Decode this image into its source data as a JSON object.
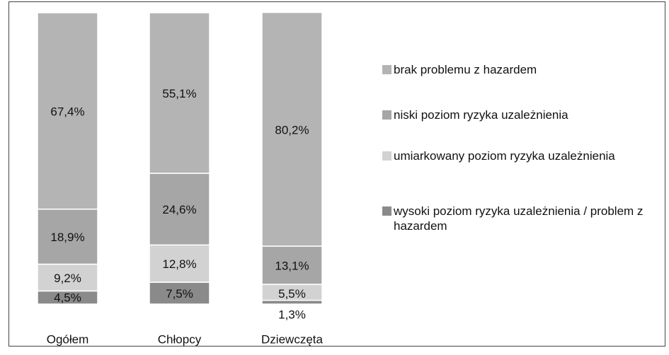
{
  "chart_data": {
    "type": "stacked_bar",
    "categories": [
      "Ogółem",
      "Chłopcy",
      "Dziewczęta"
    ],
    "ylim": [
      0,
      100
    ],
    "series": [
      {
        "name": "brak problemu z hazardem",
        "color": "#b4b4b4",
        "values": [
          67.4,
          55.1,
          80.2
        ],
        "value_labels": [
          "67,4%",
          "55,1%",
          "80,2%"
        ]
      },
      {
        "name": "niski poziom ryzyka uzależnienia",
        "color": "#a6a6a6",
        "values": [
          18.9,
          24.6,
          13.1
        ],
        "value_labels": [
          "18,9%",
          "24,6%",
          "13,1%"
        ]
      },
      {
        "name": "umiarkowany poziom ryzyka uzależnienia",
        "color": "#d2d2d2",
        "values": [
          9.2,
          12.8,
          5.5
        ],
        "value_labels": [
          "9,2%",
          "12,8%",
          "5,5%"
        ]
      },
      {
        "name": "wysoki poziom ryzyka uzależnienia / problem z hazardem",
        "color": "#8a8a8a",
        "values": [
          4.5,
          7.5,
          1.3
        ],
        "value_labels": [
          "4,5%",
          "7,5%",
          "1,3%"
        ]
      }
    ]
  }
}
